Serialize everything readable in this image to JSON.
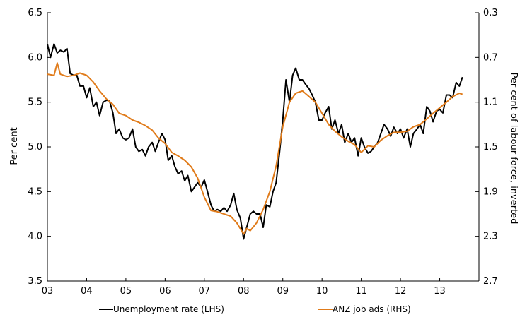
{
  "chart_data": {
    "type": "line",
    "x_tick_labels": [
      "03",
      "04",
      "05",
      "06",
      "07",
      "08",
      "09",
      "10",
      "11",
      "12",
      "13"
    ],
    "x_range": [
      2003,
      2014
    ],
    "y_left": {
      "label": "Per cent",
      "range": [
        3.5,
        6.5
      ],
      "ticks": [
        "3.5",
        "4.0",
        "4.5",
        "5.0",
        "5.5",
        "6.0",
        "6.5"
      ]
    },
    "y_right": {
      "label": "Per cent of labour force, inverted",
      "range_top_to_bottom": [
        0.3,
        2.7
      ],
      "inverted": true,
      "ticks": [
        "0.3",
        "0.7",
        "1.1",
        "1.5",
        "1.9",
        "2.3",
        "2.7"
      ]
    },
    "grid": false,
    "legend_position": "bottom",
    "series": [
      {
        "name": "Unemployment rate (LHS)",
        "axis": "left",
        "color": "#000000",
        "x": [
          2003.0,
          2003.08,
          2003.17,
          2003.25,
          2003.33,
          2003.42,
          2003.5,
          2003.58,
          2003.67,
          2003.75,
          2003.83,
          2003.92,
          2004.0,
          2004.08,
          2004.17,
          2004.25,
          2004.33,
          2004.42,
          2004.5,
          2004.58,
          2004.67,
          2004.75,
          2004.83,
          2004.92,
          2005.0,
          2005.08,
          2005.17,
          2005.25,
          2005.33,
          2005.42,
          2005.5,
          2005.58,
          2005.67,
          2005.75,
          2005.83,
          2005.92,
          2006.0,
          2006.08,
          2006.17,
          2006.25,
          2006.33,
          2006.42,
          2006.5,
          2006.58,
          2006.67,
          2006.75,
          2006.83,
          2006.92,
          2007.0,
          2007.08,
          2007.17,
          2007.25,
          2007.33,
          2007.42,
          2007.5,
          2007.58,
          2007.67,
          2007.75,
          2007.83,
          2007.92,
          2008.0,
          2008.08,
          2008.17,
          2008.25,
          2008.33,
          2008.42,
          2008.5,
          2008.58,
          2008.67,
          2008.75,
          2008.83,
          2008.92,
          2009.0,
          2009.08,
          2009.17,
          2009.25,
          2009.33,
          2009.42,
          2009.5,
          2009.58,
          2009.67,
          2009.75,
          2009.83,
          2009.92,
          2010.0,
          2010.08,
          2010.17,
          2010.25,
          2010.33,
          2010.42,
          2010.5,
          2010.58,
          2010.67,
          2010.75,
          2010.83,
          2010.92,
          2011.0,
          2011.08,
          2011.17,
          2011.25,
          2011.33,
          2011.42,
          2011.5,
          2011.58,
          2011.67,
          2011.75,
          2011.83,
          2011.92,
          2012.0,
          2012.08,
          2012.17,
          2012.25,
          2012.33,
          2012.42,
          2012.5,
          2012.58,
          2012.67,
          2012.75,
          2012.83,
          2012.92,
          2013.0,
          2013.08,
          2013.17,
          2013.25,
          2013.33,
          2013.42,
          2013.5,
          2013.58
        ],
        "values": [
          6.15,
          6.0,
          6.15,
          6.05,
          6.08,
          6.06,
          6.1,
          5.82,
          5.8,
          5.8,
          5.68,
          5.68,
          5.55,
          5.66,
          5.45,
          5.5,
          5.35,
          5.5,
          5.52,
          5.52,
          5.38,
          5.15,
          5.2,
          5.1,
          5.08,
          5.1,
          5.2,
          5.0,
          4.95,
          4.97,
          4.9,
          5.0,
          5.05,
          4.95,
          5.05,
          5.15,
          5.08,
          4.85,
          4.9,
          4.78,
          4.7,
          4.73,
          4.62,
          4.68,
          4.5,
          4.55,
          4.6,
          4.55,
          4.63,
          4.5,
          4.35,
          4.28,
          4.3,
          4.28,
          4.32,
          4.28,
          4.35,
          4.48,
          4.3,
          4.2,
          3.97,
          4.1,
          4.25,
          4.28,
          4.25,
          4.25,
          4.1,
          4.35,
          4.33,
          4.5,
          4.6,
          4.95,
          5.3,
          5.75,
          5.5,
          5.8,
          5.88,
          5.75,
          5.75,
          5.7,
          5.65,
          5.58,
          5.5,
          5.3,
          5.3,
          5.38,
          5.45,
          5.2,
          5.3,
          5.15,
          5.25,
          5.05,
          5.15,
          5.05,
          5.1,
          4.9,
          5.1,
          5.0,
          4.93,
          4.95,
          5.0,
          5.05,
          5.15,
          5.25,
          5.2,
          5.12,
          5.22,
          5.15,
          5.2,
          5.1,
          5.2,
          5.0,
          5.15,
          5.2,
          5.25,
          5.15,
          5.45,
          5.4,
          5.28,
          5.4,
          5.42,
          5.38,
          5.58,
          5.58,
          5.55,
          5.72,
          5.68,
          5.78
        ]
      },
      {
        "name": "ANZ job ads (RHS)",
        "axis": "right",
        "color": "#E07B1A",
        "x": [
          2003.0,
          2003.17,
          2003.25,
          2003.33,
          2003.5,
          2003.67,
          2003.83,
          2004.0,
          2004.17,
          2004.33,
          2004.5,
          2004.67,
          2004.83,
          2005.0,
          2005.17,
          2005.33,
          2005.5,
          2005.67,
          2005.83,
          2006.0,
          2006.17,
          2006.33,
          2006.5,
          2006.67,
          2006.83,
          2007.0,
          2007.17,
          2007.33,
          2007.5,
          2007.67,
          2007.83,
          2008.0,
          2008.08,
          2008.17,
          2008.33,
          2008.5,
          2008.67,
          2008.83,
          2009.0,
          2009.17,
          2009.33,
          2009.5,
          2009.67,
          2009.83,
          2010.0,
          2010.17,
          2010.33,
          2010.5,
          2010.67,
          2010.83,
          2011.0,
          2011.17,
          2011.33,
          2011.5,
          2011.67,
          2011.83,
          2012.0,
          2012.17,
          2012.33,
          2012.5,
          2012.67,
          2012.83,
          2013.0,
          2013.17,
          2013.33,
          2013.5,
          2013.58
        ],
        "values": [
          0.85,
          0.86,
          0.75,
          0.85,
          0.87,
          0.86,
          0.84,
          0.86,
          0.92,
          1.0,
          1.07,
          1.12,
          1.2,
          1.22,
          1.26,
          1.28,
          1.31,
          1.35,
          1.42,
          1.47,
          1.55,
          1.58,
          1.62,
          1.68,
          1.78,
          1.95,
          2.07,
          2.08,
          2.1,
          2.12,
          2.18,
          2.28,
          2.23,
          2.25,
          2.18,
          2.06,
          1.9,
          1.67,
          1.32,
          1.1,
          1.02,
          1.0,
          1.05,
          1.1,
          1.2,
          1.3,
          1.36,
          1.41,
          1.45,
          1.48,
          1.55,
          1.49,
          1.5,
          1.44,
          1.4,
          1.37,
          1.37,
          1.36,
          1.32,
          1.3,
          1.25,
          1.2,
          1.15,
          1.1,
          1.05,
          1.02,
          1.03
        ]
      }
    ]
  }
}
